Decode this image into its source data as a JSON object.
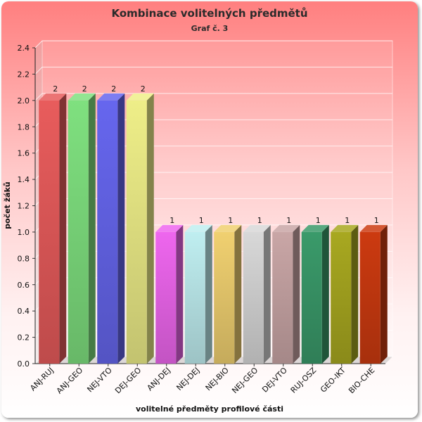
{
  "chart_data": {
    "type": "bar",
    "title": "Kombinace volitelných předmětů",
    "subtitle": "Graf č. 3",
    "xlabel": "volitelné předměty profilové části",
    "ylabel": "počet žáků",
    "ylim": [
      0,
      2.4
    ],
    "yticks": [
      "0.0",
      "0.2",
      "0.4",
      "0.6",
      "0.8",
      "1.0",
      "1.2",
      "1.4",
      "1.6",
      "1.8",
      "2.0",
      "2.2",
      "2.4"
    ],
    "grid": true,
    "categories": [
      "ANJ-RUJ",
      "ANJ-GEO",
      "NEJ-VTO",
      "DEJ-GEO",
      "ANJ-DEJ",
      "NEJ-DEJ",
      "NEJ-BIO",
      "NEJ-GEO",
      "DEJ-VTO",
      "RUJ-OSZ",
      "GEO-IKT",
      "BIO-CHE"
    ],
    "values": [
      2,
      2,
      2,
      2,
      1,
      1,
      1,
      1,
      1,
      1,
      1,
      1
    ],
    "data_labels": [
      "2",
      "2",
      "2",
      "2",
      "1",
      "1",
      "1",
      "1",
      "1",
      "1",
      "1",
      "1"
    ],
    "colors": [
      "#e85c5c",
      "#7fe07f",
      "#6666ee",
      "#eeee88",
      "#ee66ee",
      "#bfeef0",
      "#f0d070",
      "#d8d8d8",
      "#c9a6a6",
      "#3a9a6a",
      "#a8a820",
      "#cc3a10"
    ]
  }
}
